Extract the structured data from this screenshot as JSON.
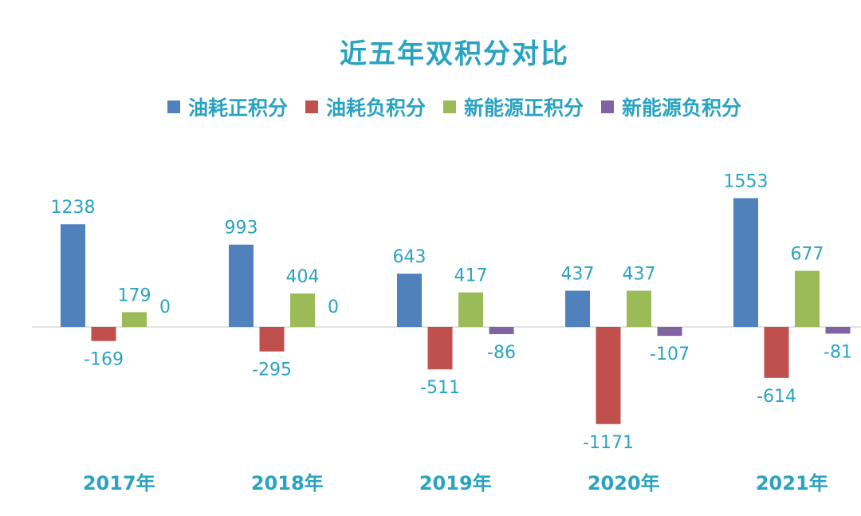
{
  "chart_data": {
    "type": "bar",
    "title": "近五年双积分对比",
    "categories": [
      "2017年",
      "2018年",
      "2019年",
      "2020年",
      "2021年"
    ],
    "series": [
      {
        "name": "油耗正积分",
        "color": "#4f81bd",
        "values": [
          1238,
          993,
          643,
          437,
          1553
        ]
      },
      {
        "name": "油耗负积分",
        "color": "#c0504d",
        "values": [
          -169,
          -295,
          -511,
          -1171,
          -614
        ]
      },
      {
        "name": "新能源正积分",
        "color": "#9bbb59",
        "values": [
          179,
          404,
          417,
          437,
          677
        ]
      },
      {
        "name": "新能源负积分",
        "color": "#8064a2",
        "values": [
          0,
          0,
          -86,
          -107,
          -81
        ]
      }
    ],
    "legend_position": "top",
    "grid": false,
    "label_color": "#2aa3c0",
    "axis_color": "#d9d9d9"
  }
}
